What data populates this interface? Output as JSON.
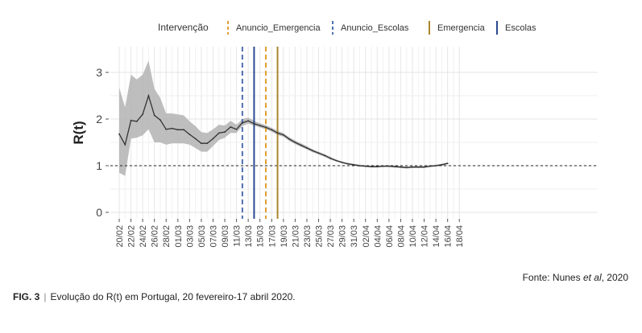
{
  "chart_data": {
    "type": "line",
    "xlabel": "",
    "ylabel": "R(t)",
    "ylim": [
      0,
      3.4
    ],
    "yticks": [
      0,
      1,
      2,
      3
    ],
    "x_tick_labels": [
      "20/02",
      "22/02",
      "24/02",
      "26/02",
      "28/02",
      "01/03",
      "03/03",
      "05/03",
      "07/03",
      "09/03",
      "11/03",
      "13/03",
      "15/03",
      "17/03",
      "19/03",
      "21/03",
      "23/03",
      "25/03",
      "27/03",
      "29/03",
      "31/03",
      "02/04",
      "04/04",
      "06/04",
      "08/04",
      "10/04",
      "12/04",
      "14/04",
      "16/04",
      "18/04"
    ],
    "x": [
      "20/02",
      "21/02",
      "22/02",
      "23/02",
      "24/02",
      "25/02",
      "26/02",
      "27/02",
      "28/02",
      "29/02",
      "01/03",
      "02/03",
      "03/03",
      "04/03",
      "05/03",
      "06/03",
      "07/03",
      "08/03",
      "09/03",
      "10/03",
      "11/03",
      "12/03",
      "13/03",
      "14/03",
      "15/03",
      "16/03",
      "17/03",
      "18/03",
      "19/03",
      "20/03",
      "21/03",
      "22/03",
      "23/03",
      "24/03",
      "25/03",
      "26/03",
      "27/03",
      "28/03",
      "29/03",
      "30/03",
      "31/03",
      "01/04",
      "02/04",
      "03/04",
      "04/04",
      "05/04",
      "06/04",
      "07/04",
      "08/04",
      "09/04",
      "10/04",
      "11/04",
      "12/04",
      "13/04",
      "14/04",
      "15/04",
      "16/04"
    ],
    "series": [
      {
        "values": [
          1.68,
          1.45,
          1.97,
          1.95,
          2.1,
          2.5,
          2.08,
          1.98,
          1.78,
          1.8,
          1.77,
          1.77,
          1.67,
          1.58,
          1.48,
          1.48,
          1.58,
          1.7,
          1.72,
          1.83,
          1.78,
          1.92,
          1.96,
          1.9,
          1.86,
          1.82,
          1.77,
          1.7,
          1.66,
          1.57,
          1.5,
          1.44,
          1.38,
          1.32,
          1.27,
          1.22,
          1.16,
          1.11,
          1.07,
          1.04,
          1.02,
          1.0,
          0.99,
          0.98,
          0.98,
          0.99,
          0.99,
          0.98,
          0.97,
          0.96,
          0.97,
          0.97,
          0.97,
          0.99,
          1.0,
          1.02,
          1.05
        ],
        "lower": [
          0.85,
          0.78,
          1.58,
          1.6,
          1.65,
          1.78,
          1.5,
          1.5,
          1.45,
          1.48,
          1.48,
          1.48,
          1.45,
          1.38,
          1.3,
          1.3,
          1.42,
          1.55,
          1.6,
          1.7,
          1.7,
          1.85,
          1.9,
          1.86,
          1.82,
          1.78,
          1.73,
          1.66,
          1.62,
          1.53,
          1.46,
          1.4,
          1.35,
          1.29,
          1.24,
          1.19,
          1.13,
          1.09,
          1.05,
          1.02,
          1.0,
          0.98,
          0.97,
          0.96,
          0.96,
          0.97,
          0.97,
          0.96,
          0.95,
          0.94,
          0.95,
          0.95,
          0.95,
          0.97,
          0.98,
          1.0,
          1.03
        ],
        "upper": [
          2.68,
          2.25,
          2.95,
          2.85,
          2.95,
          3.25,
          2.65,
          2.45,
          2.12,
          2.12,
          2.1,
          2.08,
          1.95,
          1.85,
          1.72,
          1.7,
          1.78,
          1.88,
          1.86,
          1.96,
          1.88,
          2.0,
          2.03,
          1.96,
          1.91,
          1.87,
          1.81,
          1.75,
          1.7,
          1.61,
          1.54,
          1.48,
          1.42,
          1.35,
          1.3,
          1.25,
          1.19,
          1.13,
          1.09,
          1.06,
          1.04,
          1.02,
          1.01,
          1.0,
          1.0,
          1.01,
          1.01,
          1.0,
          0.99,
          0.98,
          0.99,
          0.99,
          0.99,
          1.01,
          1.02,
          1.04,
          1.07
        ]
      }
    ],
    "reference_line": {
      "y": 1,
      "style": "dashed"
    },
    "legend": {
      "title": "Intervenção",
      "position": "top",
      "entries": [
        {
          "label": "Anuncio_Emergencia",
          "color": "#E0A030",
          "style": "dashed",
          "date": "16/03"
        },
        {
          "label": "Anuncio_Escolas",
          "color": "#4F6FB0",
          "style": "dashed",
          "date": "12/03"
        },
        {
          "label": "Emergencia",
          "color": "#A8872B",
          "style": "solid",
          "date": "18/03"
        },
        {
          "label": "Escolas",
          "color": "#2B4A8F",
          "style": "solid",
          "date": "14/03"
        }
      ]
    },
    "grid": true
  },
  "source": {
    "prefix": "Fonte: Nunes ",
    "italic": "et al",
    "suffix": ", 2020"
  },
  "caption": {
    "fig": "FIG. 3",
    "sep": "|",
    "text": "Evolução do R(t) em Portugal, 20 fevereiro-17 abril 2020."
  }
}
